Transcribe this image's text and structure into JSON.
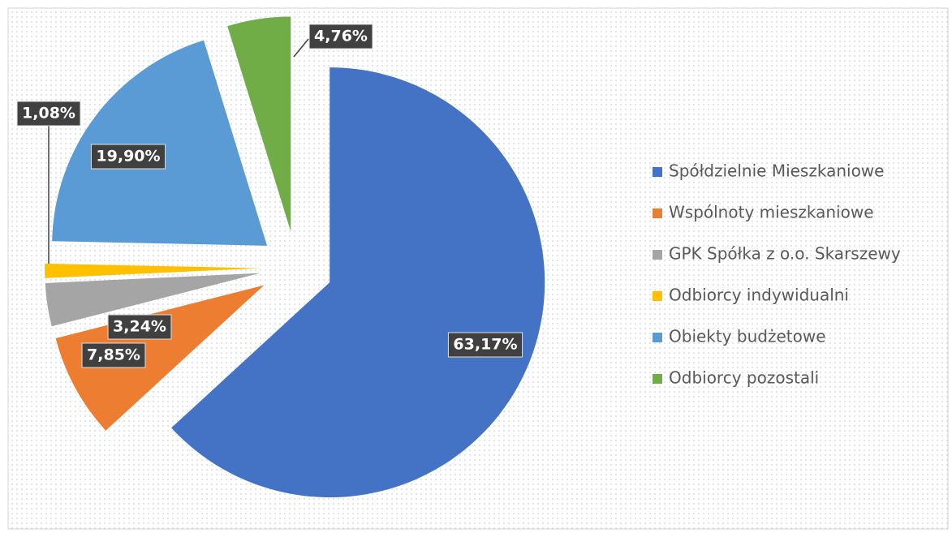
{
  "chart_data": {
    "type": "pie",
    "categories": [
      "Spółdzielnie Mieszkaniowe",
      "Wspólnoty mieszkaniowe",
      "GPK Spółka z o.o. Skarszewy",
      "Odbiorcy indywidualni",
      "Obiekty budżetowe",
      "Odbiorcy pozostali"
    ],
    "values": [
      63.17,
      7.85,
      3.24,
      1.08,
      19.9,
      4.76
    ],
    "value_labels": [
      "63,17%",
      "7,85%",
      "3,24%",
      "1,08%",
      "19,90%",
      "4,76%"
    ],
    "colors": [
      "#4472c4",
      "#ed7d31",
      "#a5a5a5",
      "#ffc000",
      "#5b9bd5",
      "#70ad47"
    ],
    "legend": "right"
  }
}
